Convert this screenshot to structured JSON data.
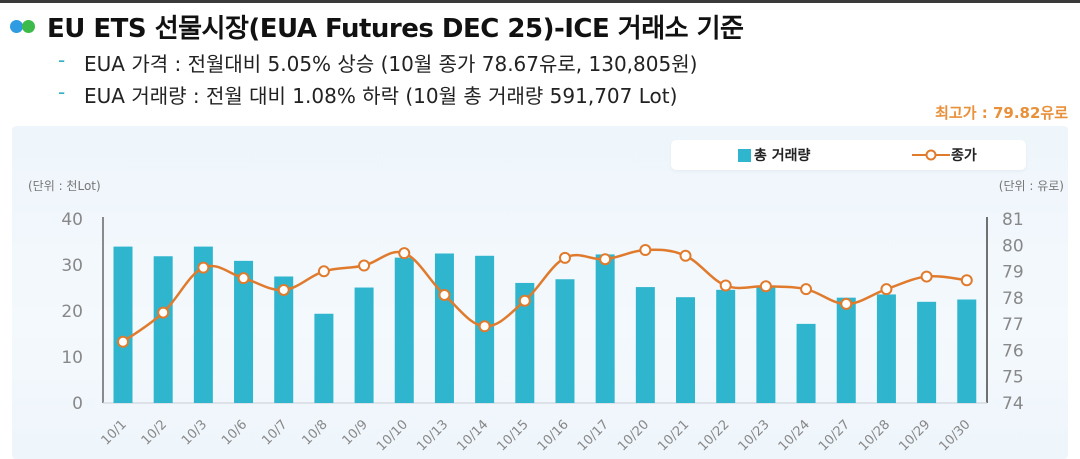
{
  "header": {
    "title": "EU ETS 선물시장(EUA Futures DEC 25)-ICE 거래소 기준",
    "bullets": [
      "EUA 가격 : 전월대비 5.05% 상승 (10월 종가 78.67유로, 130,805원)",
      "EUA 거래량 : 전월 대비 1.08% 하락 (10월 총 거래량 591,707 Lot)"
    ],
    "bullet_marker": "-",
    "max_price": "최고가 : 79.82유로"
  },
  "colors": {
    "bar": "#2fb5ce",
    "line": "#e07b2e",
    "highlight": "#e8903a"
  },
  "chart_data": {
    "type": "bar+line",
    "categories": [
      "10/1",
      "10/2",
      "10/3",
      "10/6",
      "10/7",
      "10/8",
      "10/9",
      "10/10",
      "10/13",
      "10/14",
      "10/15",
      "10/16",
      "10/17",
      "10/20",
      "10/21",
      "10/22",
      "10/23",
      "10/24",
      "10/27",
      "10/28",
      "10/29",
      "10/30"
    ],
    "series": [
      {
        "name": "총 거래량",
        "type": "bar",
        "axis": "left",
        "values": [
          34.0,
          31.9,
          34.0,
          30.9,
          27.5,
          19.4,
          25.1,
          31.6,
          32.5,
          32.0,
          26.1,
          26.9,
          32.3,
          25.2,
          23.0,
          24.6,
          25.2,
          17.2,
          22.9,
          23.6,
          22.0,
          22.5
        ]
      },
      {
        "name": "종가",
        "type": "line",
        "axis": "right",
        "values": [
          76.33,
          77.44,
          79.15,
          78.75,
          78.3,
          79.01,
          79.23,
          79.7,
          78.11,
          76.92,
          77.89,
          79.52,
          79.47,
          79.82,
          79.6,
          78.47,
          78.44,
          78.33,
          77.77,
          78.33,
          78.81,
          78.67
        ]
      }
    ],
    "left_axis": {
      "label": "(단위 : 천Lot)",
      "range": [
        0,
        40
      ],
      "ticks": [
        "0",
        "10",
        "20",
        "30",
        "40"
      ]
    },
    "right_axis": {
      "label": "(단위 : 유로)",
      "range": [
        74,
        81
      ],
      "ticks": [
        "74",
        "75",
        "76",
        "77",
        "78",
        "79",
        "80",
        "81"
      ]
    },
    "legend": {
      "position": "top-right",
      "entries": [
        "총 거래량",
        "종가"
      ]
    },
    "grid": false
  }
}
